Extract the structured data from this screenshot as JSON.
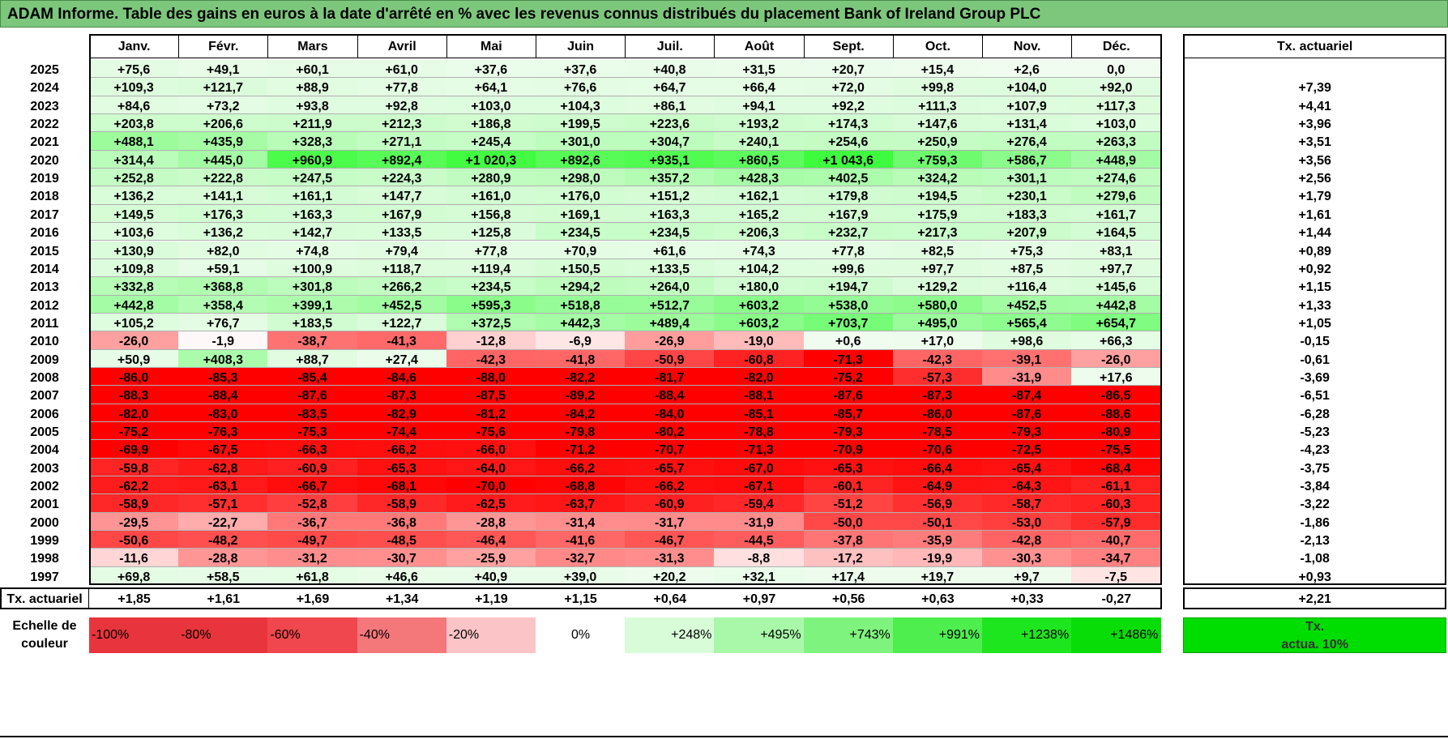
{
  "title": "ADAM Informe. Table des gains en euros à la date d'arrêté en % avec les revenus connus distribués du placement Bank of Ireland Group PLC",
  "months": [
    "Janv.",
    "Févr.",
    "Mars",
    "Avril",
    "Mai",
    "Juin",
    "Juil.",
    "Août",
    "Sept.",
    "Oct.",
    "Nov.",
    "Déc."
  ],
  "rate_header": "Tx. actuariel",
  "rows": [
    {
      "year": "2025",
      "values": [
        "+75,6",
        "+49,1",
        "+60,1",
        "+61,0",
        "+37,6",
        "+37,6",
        "+40,8",
        "+31,5",
        "+20,7",
        "+15,4",
        "+2,6",
        "0,0"
      ],
      "rate": ""
    },
    {
      "year": "2024",
      "values": [
        "+109,3",
        "+121,7",
        "+88,9",
        "+77,8",
        "+64,1",
        "+76,6",
        "+64,7",
        "+66,4",
        "+72,0",
        "+99,8",
        "+104,0",
        "+92,0"
      ],
      "rate": "+7,39"
    },
    {
      "year": "2023",
      "values": [
        "+84,6",
        "+73,2",
        "+93,8",
        "+92,8",
        "+103,0",
        "+104,3",
        "+86,1",
        "+94,1",
        "+92,2",
        "+111,3",
        "+107,9",
        "+117,3"
      ],
      "rate": "+4,41"
    },
    {
      "year": "2022",
      "values": [
        "+203,8",
        "+206,6",
        "+211,9",
        "+212,3",
        "+186,8",
        "+199,5",
        "+223,6",
        "+193,2",
        "+174,3",
        "+147,6",
        "+131,4",
        "+103,0"
      ],
      "rate": "+3,96"
    },
    {
      "year": "2021",
      "values": [
        "+488,1",
        "+435,9",
        "+328,3",
        "+271,1",
        "+245,4",
        "+301,0",
        "+304,7",
        "+240,1",
        "+254,6",
        "+250,9",
        "+276,4",
        "+263,3"
      ],
      "rate": "+3,51"
    },
    {
      "year": "2020",
      "values": [
        "+314,4",
        "+445,0",
        "+960,9",
        "+892,4",
        "+1 020,3",
        "+892,6",
        "+935,1",
        "+860,5",
        "+1 043,6",
        "+759,3",
        "+586,7",
        "+448,9"
      ],
      "rate": "+3,56"
    },
    {
      "year": "2019",
      "values": [
        "+252,8",
        "+222,8",
        "+247,5",
        "+224,3",
        "+280,9",
        "+298,0",
        "+357,2",
        "+428,3",
        "+402,5",
        "+324,2",
        "+301,1",
        "+274,6"
      ],
      "rate": "+2,56"
    },
    {
      "year": "2018",
      "values": [
        "+136,2",
        "+141,1",
        "+161,1",
        "+147,7",
        "+161,0",
        "+176,0",
        "+151,2",
        "+162,1",
        "+179,8",
        "+194,5",
        "+230,1",
        "+279,6"
      ],
      "rate": "+1,79"
    },
    {
      "year": "2017",
      "values": [
        "+149,5",
        "+176,3",
        "+163,3",
        "+167,9",
        "+156,8",
        "+169,1",
        "+163,3",
        "+165,2",
        "+167,9",
        "+175,9",
        "+183,3",
        "+161,7"
      ],
      "rate": "+1,61"
    },
    {
      "year": "2016",
      "values": [
        "+103,6",
        "+136,2",
        "+142,7",
        "+133,5",
        "+125,8",
        "+234,5",
        "+234,5",
        "+206,3",
        "+232,7",
        "+217,3",
        "+207,9",
        "+164,5"
      ],
      "rate": "+1,44"
    },
    {
      "year": "2015",
      "values": [
        "+130,9",
        "+82,0",
        "+74,8",
        "+79,4",
        "+77,8",
        "+70,9",
        "+61,6",
        "+74,3",
        "+77,8",
        "+82,5",
        "+75,3",
        "+83,1"
      ],
      "rate": "+0,89"
    },
    {
      "year": "2014",
      "values": [
        "+109,8",
        "+59,1",
        "+100,9",
        "+118,7",
        "+119,4",
        "+150,5",
        "+133,5",
        "+104,2",
        "+99,6",
        "+97,7",
        "+87,5",
        "+97,7"
      ],
      "rate": "+0,92"
    },
    {
      "year": "2013",
      "values": [
        "+332,8",
        "+368,8",
        "+301,8",
        "+266,2",
        "+234,5",
        "+294,2",
        "+264,0",
        "+180,0",
        "+194,7",
        "+129,2",
        "+116,4",
        "+145,6"
      ],
      "rate": "+1,15"
    },
    {
      "year": "2012",
      "values": [
        "+442,8",
        "+358,4",
        "+399,1",
        "+452,5",
        "+595,3",
        "+518,8",
        "+512,7",
        "+603,2",
        "+538,0",
        "+580,0",
        "+452,5",
        "+442,8"
      ],
      "rate": "+1,33"
    },
    {
      "year": "2011",
      "values": [
        "+105,2",
        "+76,7",
        "+183,5",
        "+122,7",
        "+372,5",
        "+442,3",
        "+489,4",
        "+603,2",
        "+703,7",
        "+495,0",
        "+565,4",
        "+654,7"
      ],
      "rate": "+1,05"
    },
    {
      "year": "2010",
      "values": [
        "-26,0",
        "-1,9",
        "-38,7",
        "-41,3",
        "-12,8",
        "-6,9",
        "-26,9",
        "-19,0",
        "+0,6",
        "+17,0",
        "+98,6",
        "+66,3"
      ],
      "rate": "-0,15"
    },
    {
      "year": "2009",
      "values": [
        "+50,9",
        "+408,3",
        "+88,7",
        "+27,4",
        "-42,3",
        "-41,8",
        "-50,9",
        "-60,8",
        "-71,3",
        "-42,3",
        "-39,1",
        "-26,0"
      ],
      "rate": "-0,61"
    },
    {
      "year": "2008",
      "values": [
        "-86,0",
        "-85,3",
        "-85,4",
        "-84,6",
        "-88,0",
        "-82,2",
        "-81,7",
        "-82,0",
        "-75,2",
        "-57,3",
        "-31,9",
        "+17,6"
      ],
      "rate": "-3,69"
    },
    {
      "year": "2007",
      "values": [
        "-88,3",
        "-88,4",
        "-87,6",
        "-87,3",
        "-87,5",
        "-89,2",
        "-88,4",
        "-88,1",
        "-87,6",
        "-87,3",
        "-87,4",
        "-86,5"
      ],
      "rate": "-6,51"
    },
    {
      "year": "2006",
      "values": [
        "-82,0",
        "-83,0",
        "-83,5",
        "-82,9",
        "-81,2",
        "-84,2",
        "-84,0",
        "-85,1",
        "-85,7",
        "-86,0",
        "-87,6",
        "-88,6"
      ],
      "rate": "-6,28"
    },
    {
      "year": "2005",
      "values": [
        "-75,2",
        "-76,3",
        "-75,3",
        "-74,4",
        "-75,6",
        "-79,8",
        "-80,2",
        "-78,8",
        "-79,3",
        "-78,5",
        "-79,3",
        "-80,9"
      ],
      "rate": "-5,23"
    },
    {
      "year": "2004",
      "values": [
        "-69,9",
        "-67,5",
        "-66,3",
        "-66,2",
        "-66,0",
        "-71,2",
        "-70,7",
        "-71,3",
        "-70,9",
        "-70,6",
        "-72,5",
        "-75,5"
      ],
      "rate": "-4,23"
    },
    {
      "year": "2003",
      "values": [
        "-59,8",
        "-62,8",
        "-60,9",
        "-65,3",
        "-64,0",
        "-66,2",
        "-65,7",
        "-67,0",
        "-65,3",
        "-66,4",
        "-65,4",
        "-68,4"
      ],
      "rate": "-3,75"
    },
    {
      "year": "2002",
      "values": [
        "-62,2",
        "-63,1",
        "-66,7",
        "-68,1",
        "-70,0",
        "-68,8",
        "-66,2",
        "-67,1",
        "-60,1",
        "-64,9",
        "-64,3",
        "-61,1"
      ],
      "rate": "-3,84"
    },
    {
      "year": "2001",
      "values": [
        "-58,9",
        "-57,1",
        "-52,8",
        "-58,9",
        "-62,5",
        "-63,7",
        "-60,9",
        "-59,4",
        "-51,2",
        "-56,9",
        "-58,7",
        "-60,3"
      ],
      "rate": "-3,22"
    },
    {
      "year": "2000",
      "values": [
        "-29,5",
        "-22,7",
        "-36,7",
        "-36,8",
        "-28,8",
        "-31,4",
        "-31,7",
        "-31,9",
        "-50,0",
        "-50,1",
        "-53,0",
        "-57,9"
      ],
      "rate": "-1,86"
    },
    {
      "year": "1999",
      "values": [
        "-50,6",
        "-48,2",
        "-49,7",
        "-48,5",
        "-46,4",
        "-41,6",
        "-46,7",
        "-44,5",
        "-37,8",
        "-35,9",
        "-42,8",
        "-40,7"
      ],
      "rate": "-2,13"
    },
    {
      "year": "1998",
      "values": [
        "-11,6",
        "-28,8",
        "-31,2",
        "-30,7",
        "-25,9",
        "-32,7",
        "-31,3",
        "-8,8",
        "-17,2",
        "-19,9",
        "-30,3",
        "-34,7"
      ],
      "rate": "-1,08"
    },
    {
      "year": "1997",
      "values": [
        "+69,8",
        "+58,5",
        "+61,8",
        "+46,6",
        "+40,9",
        "+39,0",
        "+20,2",
        "+32,1",
        "+17,4",
        "+19,7",
        "+9,7",
        "-7,5"
      ],
      "rate": "+0,93"
    }
  ],
  "summary": {
    "label": "Tx. actuariel",
    "values": [
      "+1,85",
      "+1,61",
      "+1,69",
      "+1,34",
      "+1,19",
      "+1,15",
      "+0,64",
      "+0,97",
      "+0,56",
      "+0,63",
      "+0,33",
      "-0,27"
    ],
    "total": "+2,21"
  },
  "scale": {
    "label_line1": "Echelle de",
    "label_line2": "couleur",
    "swatches": [
      {
        "label": "-100%",
        "color": "#e8343c"
      },
      {
        "label": "-80%",
        "color": "#e8343c"
      },
      {
        "label": "-60%",
        "color": "#ef474d"
      },
      {
        "label": "-40%",
        "color": "#f4777a"
      },
      {
        "label": "-20%",
        "color": "#fbc4c6"
      },
      {
        "label": "0%",
        "color": "#ffffff"
      },
      {
        "label": "+248%",
        "color": "#d8fcd8"
      },
      {
        "label": "+495%",
        "color": "#a9f8a9"
      },
      {
        "label": "+743%",
        "color": "#7ef47e"
      },
      {
        "label": "+991%",
        "color": "#4eee4e"
      },
      {
        "label": "+1238%",
        "color": "#1ee61e"
      },
      {
        "label": "+1486%",
        "color": "#08dd08"
      }
    ],
    "actua_line1": "Tx.",
    "actua_line2": "actua. 10%"
  },
  "colors": {
    "title_bg": "#7dc77d",
    "negative_max": "#ff0000",
    "positive_max": "#00e000"
  }
}
